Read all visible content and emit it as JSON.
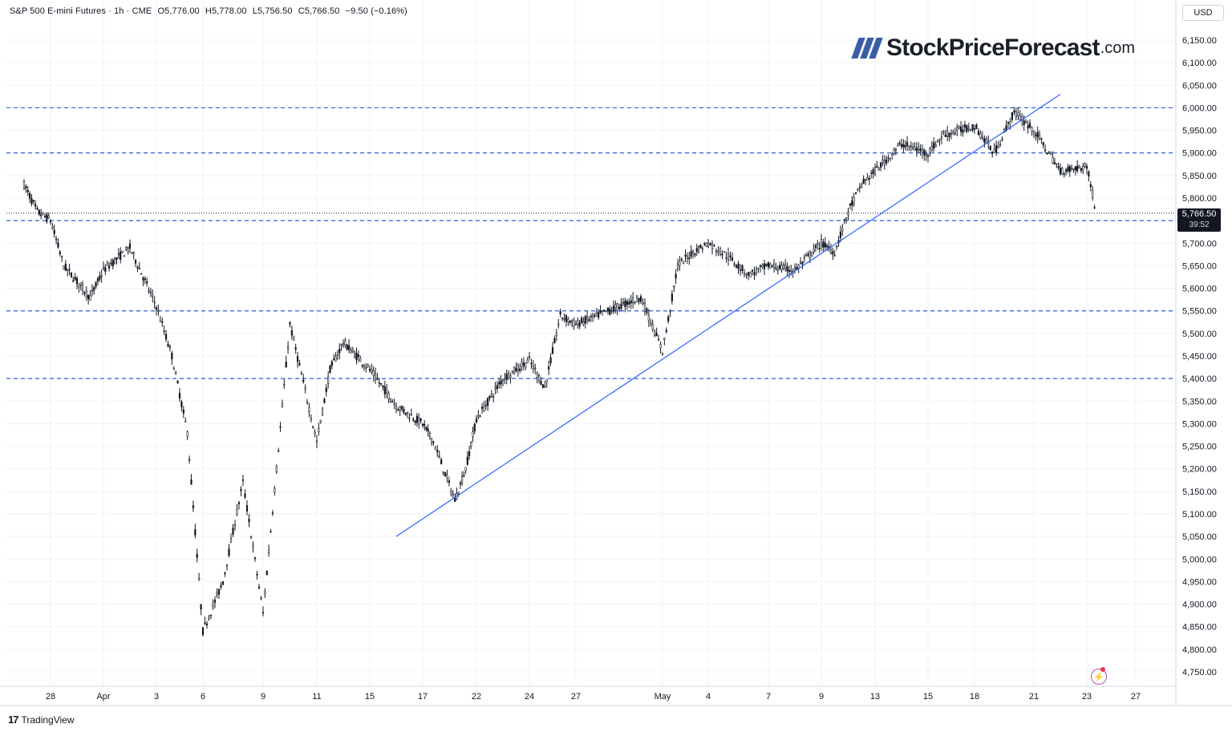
{
  "header": {
    "symbol": "S&P 500 E-mini Futures · 1h · CME",
    "open": "O5,776.00",
    "high": "H5,778.00",
    "low": "L5,756.50",
    "close": "C5,766.50",
    "change": "−9.50 (−0.16%)"
  },
  "currency": "USD",
  "logo": {
    "main": "StockPriceForecast",
    "tld": ".com"
  },
  "brand": "TradingView",
  "last_price": {
    "value": "5,766.50",
    "timer": "39:52"
  },
  "colors": {
    "candle": "#131722",
    "trend": "#2962ff",
    "level": "#2e5bd9",
    "grid": "#f0f3fa",
    "tag": "#131722"
  },
  "chart_data": {
    "type": "candlestick",
    "interval": "1h",
    "ylim": [
      4700,
      6200
    ],
    "y_ticks": [
      "6,150.00",
      "6,100.00",
      "6,050.00",
      "6,000.00",
      "5,950.00",
      "5,900.00",
      "5,850.00",
      "5,800.00",
      "5,750.00",
      "5,700.00",
      "5,650.00",
      "5,600.00",
      "5,550.00",
      "5,500.00",
      "5,450.00",
      "5,400.00",
      "5,350.00",
      "5,300.00",
      "5,250.00",
      "5,200.00",
      "5,150.00",
      "5,100.00",
      "5,050.00",
      "5,000.00",
      "4,950.00",
      "4,900.00",
      "4,850.00",
      "4,800.00",
      "4,750.00"
    ],
    "x_ticks": [
      "28",
      "Apr",
      "3",
      "6",
      "9",
      "11",
      "15",
      "17",
      "22",
      "24",
      "27",
      "May",
      "4",
      "7",
      "9",
      "13",
      "15",
      "18",
      "21",
      "23",
      "27"
    ],
    "horizontal_levels": [
      6000,
      5900,
      5750,
      5550,
      5400
    ],
    "trendline": {
      "start": {
        "date": "Apr 16",
        "price": 5050
      },
      "end": {
        "date": "May 22",
        "price": 6030
      }
    },
    "price_path": [
      [
        "Mar 26",
        5830
      ],
      [
        "Mar 27",
        5770
      ],
      [
        "Mar 28",
        5750
      ],
      [
        "Mar 29",
        5650
      ],
      [
        "Mar 31",
        5580
      ],
      [
        "Apr 1",
        5640
      ],
      [
        "Apr 2",
        5690
      ],
      [
        "Apr 3",
        5560
      ],
      [
        "Apr 4",
        5450
      ],
      [
        "Apr 5",
        5280
      ],
      [
        "Apr 6",
        4840
      ],
      [
        "Apr 7",
        4950
      ],
      [
        "Apr 8",
        5170
      ],
      [
        "Apr 9",
        4880
      ],
      [
        "Apr 10",
        5520
      ],
      [
        "Apr 11",
        5260
      ],
      [
        "Apr 12",
        5420
      ],
      [
        "Apr 13",
        5480
      ],
      [
        "Apr 15",
        5420
      ],
      [
        "Apr 16",
        5340
      ],
      [
        "Apr 17",
        5300
      ],
      [
        "Apr 18",
        5260
      ],
      [
        "Apr 20",
        5130
      ],
      [
        "Apr 21",
        5200
      ],
      [
        "Apr 22",
        5310
      ],
      [
        "Apr 23",
        5400
      ],
      [
        "Apr 24",
        5440
      ],
      [
        "Apr 25",
        5380
      ],
      [
        "Apr 26",
        5540
      ],
      [
        "Apr 27",
        5520
      ],
      [
        "Apr 29",
        5560
      ],
      [
        "Apr 30",
        5580
      ],
      [
        "May 1",
        5460
      ],
      [
        "May 2",
        5650
      ],
      [
        "May 3",
        5680
      ],
      [
        "May 4",
        5700
      ],
      [
        "May 5",
        5670
      ],
      [
        "May 6",
        5630
      ],
      [
        "May 7",
        5650
      ],
      [
        "May 8",
        5640
      ],
      [
        "May 9",
        5700
      ],
      [
        "May 10",
        5680
      ],
      [
        "May 11",
        5770
      ],
      [
        "May 12",
        5830
      ],
      [
        "May 13",
        5860
      ],
      [
        "May 14",
        5920
      ],
      [
        "May 15",
        5900
      ],
      [
        "May 16",
        5940
      ],
      [
        "May 18",
        5960
      ],
      [
        "May 19",
        5900
      ],
      [
        "May 20",
        5990
      ],
      [
        "May 21",
        5950
      ],
      [
        "May 22",
        5860
      ],
      [
        "May 23",
        5870
      ],
      [
        "May 23",
        5766.5
      ]
    ]
  }
}
